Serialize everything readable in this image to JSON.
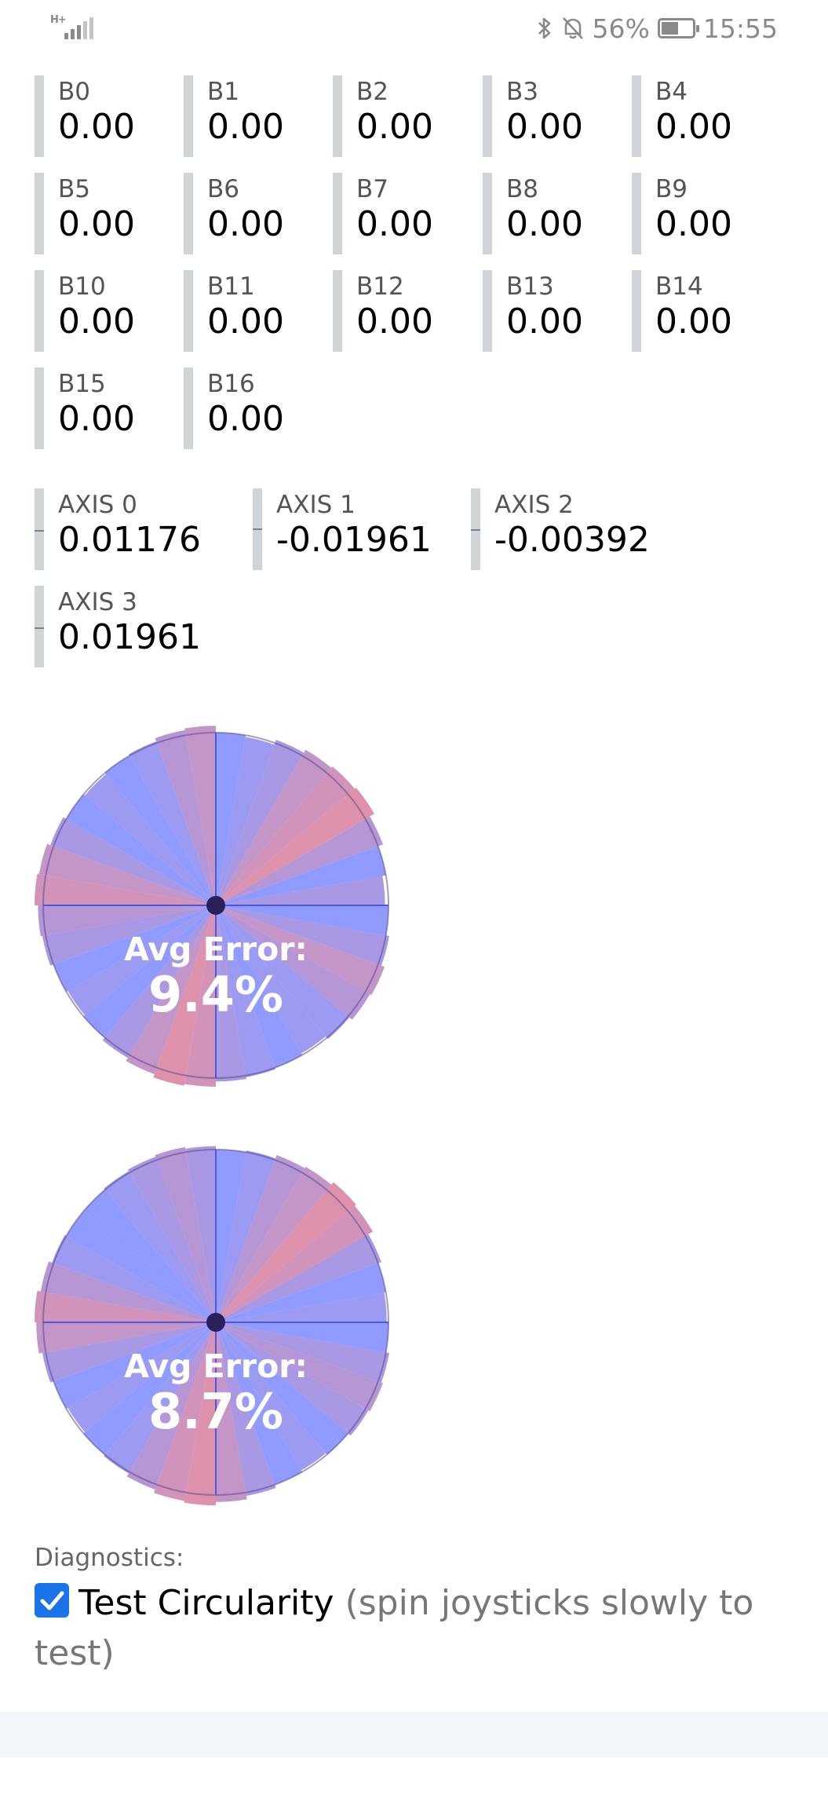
{
  "status": {
    "network": "H+",
    "battery": "56%",
    "battery_level": 0.56,
    "time": "15:55",
    "icons": [
      "signal-icon",
      "bluetooth-icon",
      "bell-off-icon",
      "battery-icon"
    ]
  },
  "buttons": [
    {
      "label": "B0",
      "value": "0.00"
    },
    {
      "label": "B1",
      "value": "0.00"
    },
    {
      "label": "B2",
      "value": "0.00"
    },
    {
      "label": "B3",
      "value": "0.00"
    },
    {
      "label": "B4",
      "value": "0.00"
    },
    {
      "label": "B5",
      "value": "0.00"
    },
    {
      "label": "B6",
      "value": "0.00"
    },
    {
      "label": "B7",
      "value": "0.00"
    },
    {
      "label": "B8",
      "value": "0.00"
    },
    {
      "label": "B9",
      "value": "0.00"
    },
    {
      "label": "B10",
      "value": "0.00"
    },
    {
      "label": "B11",
      "value": "0.00"
    },
    {
      "label": "B12",
      "value": "0.00"
    },
    {
      "label": "B13",
      "value": "0.00"
    },
    {
      "label": "B14",
      "value": "0.00"
    },
    {
      "label": "B15",
      "value": "0.00"
    },
    {
      "label": "B16",
      "value": "0.00"
    }
  ],
  "axes": [
    {
      "label": "AXIS 0",
      "value": "0.01176",
      "level": 0.01176
    },
    {
      "label": "AXIS 1",
      "value": "-0.01961",
      "level": -0.01961
    },
    {
      "label": "AXIS 2",
      "value": "-0.00392",
      "level": -0.00392
    },
    {
      "label": "AXIS 3",
      "value": "0.01961",
      "level": 0.01961
    }
  ],
  "sticks": [
    {
      "error_title": "Avg Error:",
      "error_value": "9.4%"
    },
    {
      "error_title": "Avg Error:",
      "error_value": "8.7%"
    }
  ],
  "diagnostics": {
    "title": "Diagnostics:",
    "checkbox_label": "Test Circularity",
    "checkbox_hint": "(spin joysticks slowly to test)",
    "checked": true
  },
  "colors": {
    "tile_bar": "#cfd4d9",
    "checkbox": "#1a73e8",
    "good": "#6f7fff",
    "bad": "#e8707f",
    "center_dot": "#2b1f5c"
  }
}
